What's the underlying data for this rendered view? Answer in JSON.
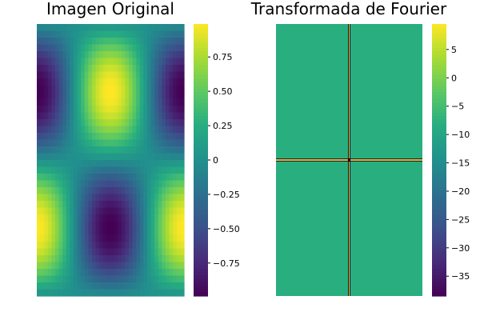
{
  "colors": {
    "background": "#ffffff",
    "colormap": "viridis"
  },
  "chart_data": [
    {
      "type": "heatmap",
      "title": "Imagen Original",
      "xlabel": "",
      "ylabel": "",
      "z_function": "cos(2*pi*x) * sin(2*pi*y)",
      "x_range": [
        0,
        1
      ],
      "y_range": [
        0,
        1
      ],
      "colorbar": {
        "range": [
          -0.99,
          0.99
        ],
        "ticks": [
          0.75,
          0.5,
          0.25,
          0,
          -0.25,
          -0.5,
          -0.75
        ],
        "tick_labels": [
          "0.75",
          "0.50",
          "0.25",
          "0",
          "−0.25",
          "−0.50",
          "−0.75"
        ]
      },
      "grid": false,
      "axes_visible": false
    },
    {
      "type": "heatmap",
      "title": "Transformada de Fourier",
      "xlabel": "",
      "ylabel": "",
      "background_value": -8,
      "peak_value": 9.5,
      "peak_lines": [
        "horizontal-center",
        "vertical-center"
      ],
      "colorbar": {
        "range": [
          -38.5,
          9.5
        ],
        "ticks": [
          5,
          0,
          -5,
          -10,
          -15,
          -20,
          -25,
          -30,
          -35
        ],
        "tick_labels": [
          "5",
          "0",
          "−5",
          "−10",
          "−15",
          "−20",
          "−25",
          "−30",
          "−35"
        ]
      },
      "grid": false,
      "axes_visible": false
    }
  ]
}
